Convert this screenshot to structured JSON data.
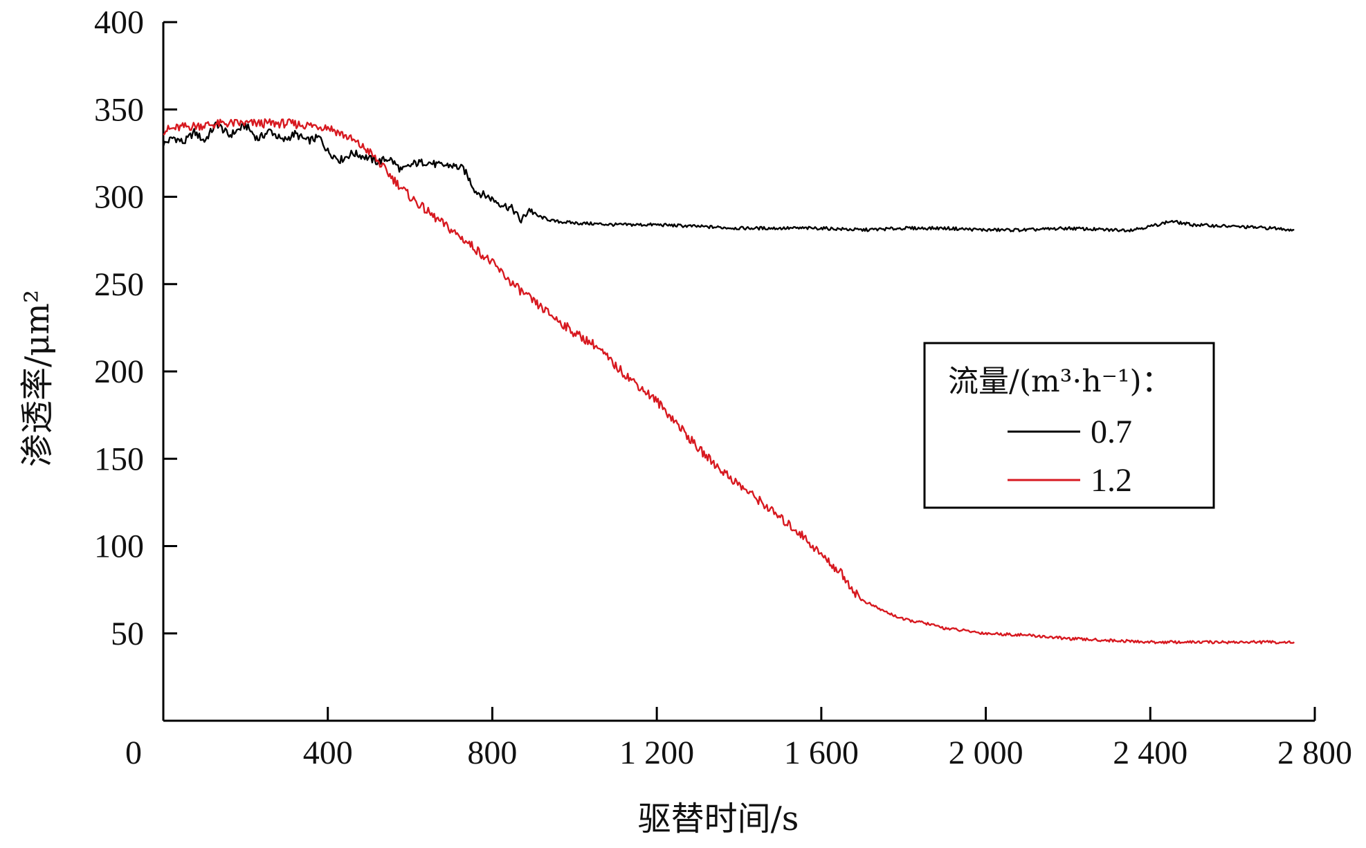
{
  "chart_data": {
    "type": "line",
    "xlabel": "驱替时间/s",
    "ylabel": "渗透率/μm²",
    "xlim": [
      0,
      2800
    ],
    "ylim": [
      0,
      400
    ],
    "x_ticks": [
      {
        "value": 0,
        "label": "0"
      },
      {
        "value": 400,
        "label": "400"
      },
      {
        "value": 800,
        "label": "800"
      },
      {
        "value": 1200,
        "label": "1 200"
      },
      {
        "value": 1600,
        "label": "1 600"
      },
      {
        "value": 2000,
        "label": "2 000"
      },
      {
        "value": 2400,
        "label": "2 400"
      },
      {
        "value": 2800,
        "label": "2 800"
      }
    ],
    "y_ticks": [
      {
        "value": 50,
        "label": "50"
      },
      {
        "value": 100,
        "label": "100"
      },
      {
        "value": 150,
        "label": "150"
      },
      {
        "value": 200,
        "label": "200"
      },
      {
        "value": 250,
        "label": "250"
      },
      {
        "value": 300,
        "label": "300"
      },
      {
        "value": 350,
        "label": "350"
      },
      {
        "value": 400,
        "label": "400"
      }
    ],
    "grid": false,
    "legend": {
      "title": "流量/(m³·h⁻¹)：",
      "placement": "center-right"
    },
    "series": [
      {
        "name": "0.7",
        "color": "#000000",
        "x": [
          0,
          25,
          50,
          75,
          100,
          130,
          160,
          200,
          230,
          260,
          290,
          320,
          350,
          380,
          400,
          430,
          460,
          490,
          520,
          550,
          580,
          610,
          640,
          670,
          700,
          730,
          760,
          790,
          820,
          850,
          870,
          890,
          910,
          950,
          1000,
          1100,
          1200,
          1300,
          1400,
          1500,
          1600,
          1700,
          1800,
          1900,
          2000,
          2100,
          2200,
          2300,
          2350,
          2400,
          2450,
          2500,
          2600,
          2700,
          2750
        ],
        "y": [
          330,
          334,
          331,
          337,
          332,
          342,
          335,
          341,
          333,
          338,
          332,
          336,
          332,
          334,
          326,
          321,
          325,
          323,
          320,
          322,
          315,
          319,
          320,
          318,
          318,
          316,
          303,
          300,
          296,
          293,
          286,
          293,
          289,
          286,
          285,
          284,
          284,
          283,
          282,
          282,
          282,
          281,
          282,
          282,
          281,
          281,
          282,
          281,
          281,
          283,
          286,
          284,
          283,
          282,
          281
        ]
      },
      {
        "name": "1.2",
        "color": "#d71920",
        "x": [
          0,
          50,
          100,
          150,
          200,
          250,
          300,
          350,
          400,
          450,
          500,
          530,
          560,
          600,
          650,
          700,
          750,
          800,
          850,
          900,
          950,
          1000,
          1050,
          1100,
          1150,
          1200,
          1250,
          1300,
          1350,
          1400,
          1450,
          1500,
          1550,
          1600,
          1650,
          1680,
          1700,
          1750,
          1800,
          1850,
          1900,
          2000,
          2100,
          2200,
          2300,
          2400,
          2500,
          2600,
          2700,
          2750
        ],
        "y": [
          338,
          340,
          341,
          342,
          342,
          342,
          342,
          341,
          340,
          334,
          326,
          318,
          310,
          300,
          290,
          281,
          272,
          262,
          250,
          240,
          231,
          222,
          215,
          203,
          193,
          183,
          170,
          156,
          145,
          135,
          126,
          116,
          107,
          95,
          84,
          74,
          69,
          63,
          58,
          56,
          53,
          50,
          49,
          47,
          46,
          45,
          45,
          45,
          45,
          45
        ]
      }
    ]
  }
}
